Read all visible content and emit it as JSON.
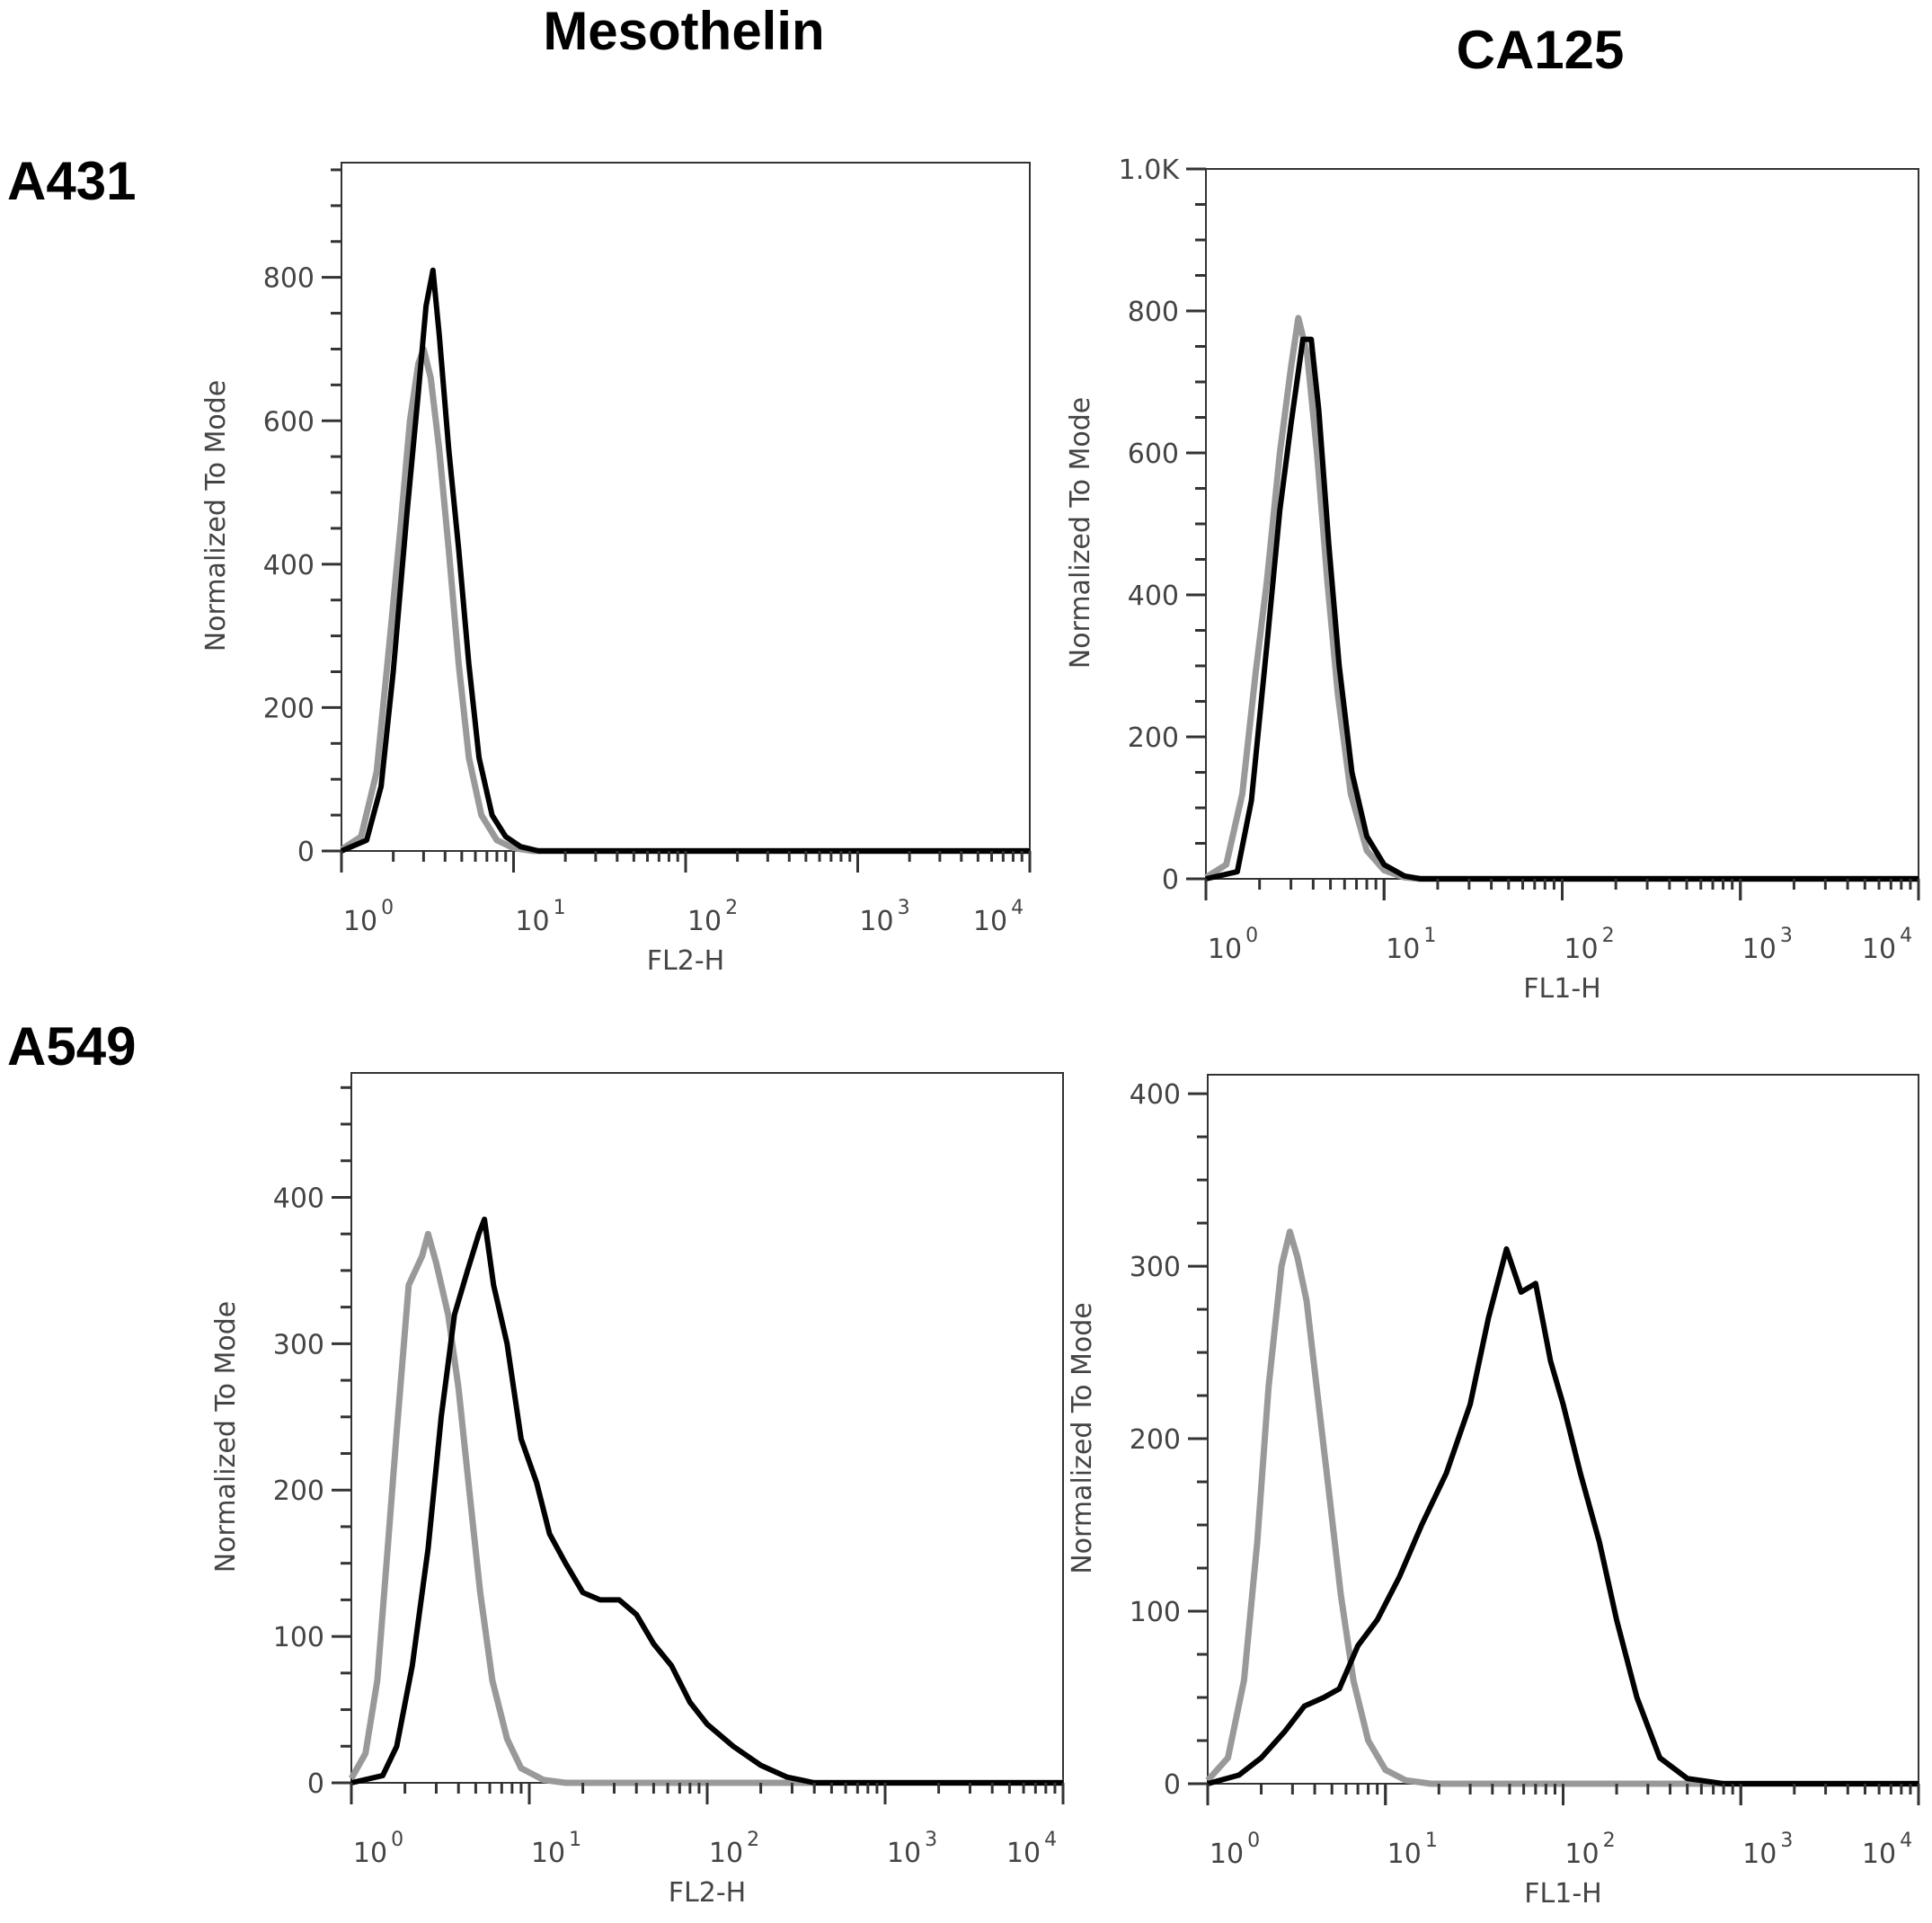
{
  "column_titles": [
    "Mesothelin",
    "CA125"
  ],
  "row_titles": [
    "A431",
    "A549"
  ],
  "colors": {
    "control": "#999999",
    "sample": "#000000"
  },
  "chart_data": [
    {
      "type": "line",
      "row": "A431",
      "column": "Mesothelin",
      "xlabel": "FL2-H",
      "ylabel": "Normalized To Mode",
      "xscale": "log",
      "xlim": [
        1,
        10000
      ],
      "ylim": [
        0,
        960
      ],
      "x_ticks": [
        "0",
        "1",
        "2",
        "3",
        "4"
      ],
      "y_ticks": [
        "0",
        "200",
        "400",
        "600",
        "800"
      ],
      "y_tick_values": [
        0,
        200,
        400,
        600,
        800
      ],
      "grid": false,
      "series": [
        {
          "role": "control",
          "color": "#999999",
          "points": [
            [
              1,
              2
            ],
            [
              1.3,
              20
            ],
            [
              1.6,
              110
            ],
            [
              1.9,
              290
            ],
            [
              2.2,
              450
            ],
            [
              2.5,
              600
            ],
            [
              2.8,
              680
            ],
            [
              3.0,
              700
            ],
            [
              3.3,
              660
            ],
            [
              3.7,
              560
            ],
            [
              4.2,
              420
            ],
            [
              4.8,
              260
            ],
            [
              5.5,
              130
            ],
            [
              6.5,
              50
            ],
            [
              8,
              15
            ],
            [
              10,
              4
            ],
            [
              13,
              0
            ],
            [
              10000,
              0
            ]
          ]
        },
        {
          "role": "sample",
          "color": "#000000",
          "points": [
            [
              1,
              0
            ],
            [
              1.4,
              15
            ],
            [
              1.7,
              90
            ],
            [
              2.0,
              250
            ],
            [
              2.4,
              470
            ],
            [
              2.8,
              640
            ],
            [
              3.1,
              760
            ],
            [
              3.4,
              810
            ],
            [
              3.7,
              720
            ],
            [
              4.2,
              560
            ],
            [
              4.8,
              420
            ],
            [
              5.5,
              260
            ],
            [
              6.3,
              130
            ],
            [
              7.5,
              50
            ],
            [
              9,
              20
            ],
            [
              11,
              6
            ],
            [
              14,
              0
            ],
            [
              10000,
              0
            ]
          ]
        }
      ]
    },
    {
      "type": "line",
      "row": "A431",
      "column": "CA125",
      "xlabel": "FL1-H",
      "ylabel": "Normalized To Mode",
      "xscale": "log",
      "xlim": [
        1,
        10000
      ],
      "ylim": [
        0,
        1000
      ],
      "x_ticks": [
        "0",
        "1",
        "2",
        "3",
        "4"
      ],
      "y_ticks": [
        "0",
        "200",
        "400",
        "600",
        "800",
        "1.0K"
      ],
      "y_tick_values": [
        0,
        200,
        400,
        600,
        800,
        1000
      ],
      "grid": false,
      "series": [
        {
          "role": "control",
          "color": "#999999",
          "points": [
            [
              1,
              2
            ],
            [
              1.3,
              20
            ],
            [
              1.6,
              120
            ],
            [
              1.9,
              290
            ],
            [
              2.2,
              420
            ],
            [
              2.6,
              600
            ],
            [
              3.0,
              720
            ],
            [
              3.3,
              790
            ],
            [
              3.7,
              740
            ],
            [
              4.2,
              600
            ],
            [
              4.8,
              420
            ],
            [
              5.5,
              260
            ],
            [
              6.5,
              120
            ],
            [
              8,
              40
            ],
            [
              10,
              12
            ],
            [
              13,
              2
            ],
            [
              16,
              0
            ],
            [
              10000,
              0
            ]
          ]
        },
        {
          "role": "sample",
          "color": "#000000",
          "points": [
            [
              1,
              0
            ],
            [
              1.5,
              10
            ],
            [
              1.8,
              110
            ],
            [
              2.2,
              330
            ],
            [
              2.6,
              520
            ],
            [
              3.0,
              640
            ],
            [
              3.5,
              760
            ],
            [
              3.9,
              760
            ],
            [
              4.3,
              660
            ],
            [
              4.9,
              470
            ],
            [
              5.6,
              300
            ],
            [
              6.6,
              150
            ],
            [
              8,
              60
            ],
            [
              10,
              20
            ],
            [
              13,
              4
            ],
            [
              16,
              0
            ],
            [
              10000,
              0
            ]
          ]
        }
      ]
    },
    {
      "type": "line",
      "row": "A549",
      "column": "Mesothelin",
      "xlabel": "FL2-H",
      "ylabel": "Normalized To Mode",
      "xscale": "log",
      "xlim": [
        1,
        10000
      ],
      "ylim": [
        0,
        485
      ],
      "x_ticks": [
        "0",
        "1",
        "2",
        "3",
        "4"
      ],
      "y_ticks": [
        "0",
        "100",
        "200",
        "300",
        "400"
      ],
      "y_tick_values": [
        0,
        100,
        200,
        300,
        400
      ],
      "grid": false,
      "series": [
        {
          "role": "control",
          "color": "#999999",
          "points": [
            [
              1,
              3
            ],
            [
              1.2,
              20
            ],
            [
              1.4,
              70
            ],
            [
              1.6,
              160
            ],
            [
              1.8,
              240
            ],
            [
              2.1,
              340
            ],
            [
              2.5,
              360
            ],
            [
              2.7,
              375
            ],
            [
              3.0,
              355
            ],
            [
              3.5,
              320
            ],
            [
              4.0,
              270
            ],
            [
              4.6,
              200
            ],
            [
              5.3,
              130
            ],
            [
              6.2,
              70
            ],
            [
              7.5,
              30
            ],
            [
              9,
              10
            ],
            [
              12,
              2
            ],
            [
              16,
              0
            ],
            [
              10000,
              0
            ]
          ]
        },
        {
          "role": "sample",
          "color": "#000000",
          "points": [
            [
              1,
              0
            ],
            [
              1.5,
              5
            ],
            [
              1.8,
              25
            ],
            [
              2.2,
              80
            ],
            [
              2.7,
              160
            ],
            [
              3.2,
              250
            ],
            [
              3.8,
              320
            ],
            [
              4.5,
              350
            ],
            [
              5.2,
              375
            ],
            [
              5.6,
              385
            ],
            [
              6.3,
              340
            ],
            [
              7.5,
              300
            ],
            [
              9,
              235
            ],
            [
              11,
              205
            ],
            [
              13,
              170
            ],
            [
              16,
              150
            ],
            [
              20,
              130
            ],
            [
              25,
              125
            ],
            [
              32,
              125
            ],
            [
              40,
              115
            ],
            [
              50,
              95
            ],
            [
              63,
              80
            ],
            [
              80,
              55
            ],
            [
              100,
              40
            ],
            [
              140,
              25
            ],
            [
              200,
              12
            ],
            [
              280,
              4
            ],
            [
              400,
              0
            ],
            [
              10000,
              0
            ]
          ]
        }
      ]
    },
    {
      "type": "line",
      "row": "A549",
      "column": "CA125",
      "xlabel": "FL1-H",
      "ylabel": "Normalized To Mode",
      "xscale": "log",
      "xlim": [
        1,
        10000
      ],
      "ylim": [
        0,
        411
      ],
      "x_ticks": [
        "0",
        "1",
        "2",
        "3",
        "4"
      ],
      "y_ticks": [
        "0",
        "100",
        "200",
        "300",
        "400"
      ],
      "y_tick_values": [
        0,
        100,
        200,
        300,
        400
      ],
      "grid": false,
      "series": [
        {
          "role": "control",
          "color": "#999999",
          "points": [
            [
              1,
              2
            ],
            [
              1.3,
              15
            ],
            [
              1.6,
              60
            ],
            [
              1.9,
              140
            ],
            [
              2.2,
              230
            ],
            [
              2.6,
              300
            ],
            [
              2.9,
              320
            ],
            [
              3.2,
              305
            ],
            [
              3.6,
              280
            ],
            [
              4.1,
              230
            ],
            [
              4.8,
              170
            ],
            [
              5.6,
              110
            ],
            [
              6.6,
              60
            ],
            [
              8,
              25
            ],
            [
              10,
              8
            ],
            [
              13,
              2
            ],
            [
              18,
              0
            ],
            [
              10000,
              0
            ]
          ]
        },
        {
          "role": "sample",
          "color": "#000000",
          "points": [
            [
              1,
              0
            ],
            [
              1.5,
              5
            ],
            [
              2,
              15
            ],
            [
              2.7,
              30
            ],
            [
              3.5,
              45
            ],
            [
              4.5,
              50
            ],
            [
              5.5,
              55
            ],
            [
              7,
              80
            ],
            [
              9,
              95
            ],
            [
              12,
              120
            ],
            [
              16,
              150
            ],
            [
              22,
              180
            ],
            [
              30,
              220
            ],
            [
              38,
              270
            ],
            [
              48,
              310
            ],
            [
              58,
              285
            ],
            [
              70,
              290
            ],
            [
              85,
              245
            ],
            [
              100,
              220
            ],
            [
              125,
              180
            ],
            [
              160,
              140
            ],
            [
              200,
              95
            ],
            [
              260,
              50
            ],
            [
              350,
              15
            ],
            [
              500,
              3
            ],
            [
              800,
              0
            ],
            [
              10000,
              0
            ]
          ]
        }
      ]
    }
  ]
}
